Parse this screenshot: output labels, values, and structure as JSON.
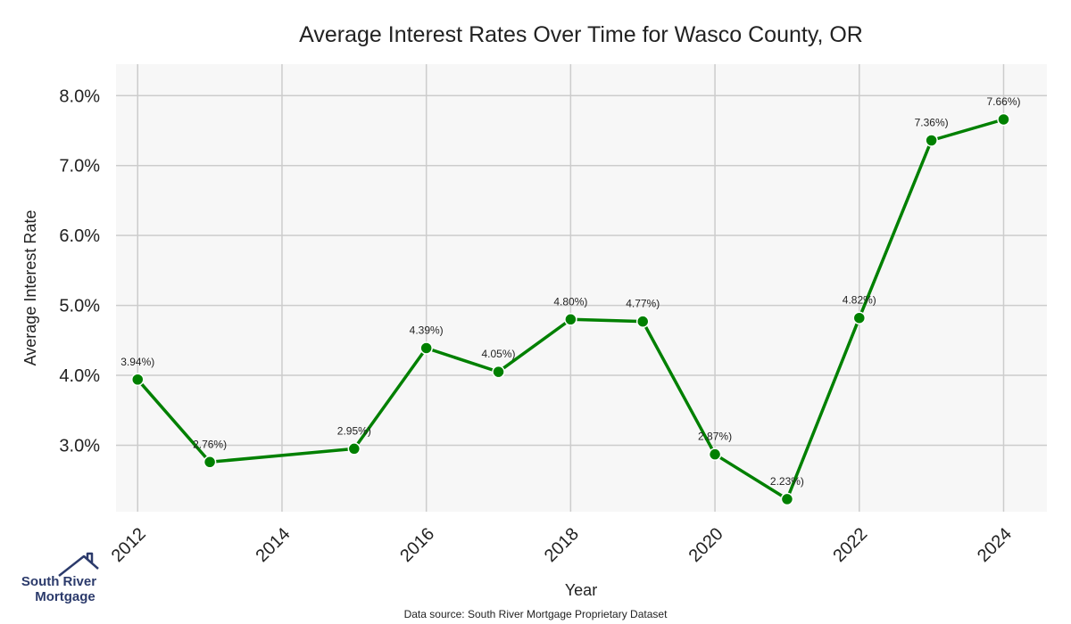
{
  "chart_data": {
    "type": "line",
    "title": "Average Interest Rates Over Time for Wasco County, OR",
    "xlabel": "Year",
    "ylabel": "Average Interest Rate",
    "x": [
      2012,
      2013,
      2015,
      2016,
      2017,
      2018,
      2019,
      2020,
      2021,
      2022,
      2023,
      2024
    ],
    "values": [
      3.94,
      2.76,
      2.95,
      4.39,
      4.05,
      4.8,
      4.77,
      2.87,
      2.23,
      4.82,
      7.36,
      7.66
    ],
    "data_labels": [
      "3.94%)",
      "2.76%)",
      "2.95%)",
      "4.39%)",
      "4.05%)",
      "4.80%)",
      "4.77%)",
      "2.87%)",
      "2.23%)",
      "4.82%)",
      "7.36%)",
      "7.66%)"
    ],
    "x_ticks": [
      "2012",
      "2014",
      "2016",
      "2018",
      "2020",
      "2022",
      "2024"
    ],
    "x_tick_values": [
      2012,
      2014,
      2016,
      2018,
      2020,
      2022,
      2024
    ],
    "y_ticks": [
      "3.0%",
      "4.0%",
      "5.0%",
      "6.0%",
      "7.0%",
      "8.0%"
    ],
    "y_tick_values": [
      3,
      4,
      5,
      6,
      7,
      8
    ],
    "xlim": [
      2011.7,
      2024.6
    ],
    "ylim": [
      2.05,
      8.45
    ],
    "grid": true,
    "line_color": "#008000",
    "background_color": "#f7f7f7",
    "grid_color": "#cccccc"
  },
  "footer": {
    "source": "Data source: South River Mortgage Proprietary Dataset"
  },
  "logo": {
    "line1": "South River",
    "line2": "Mortgage",
    "color": "#2b3a6b"
  }
}
